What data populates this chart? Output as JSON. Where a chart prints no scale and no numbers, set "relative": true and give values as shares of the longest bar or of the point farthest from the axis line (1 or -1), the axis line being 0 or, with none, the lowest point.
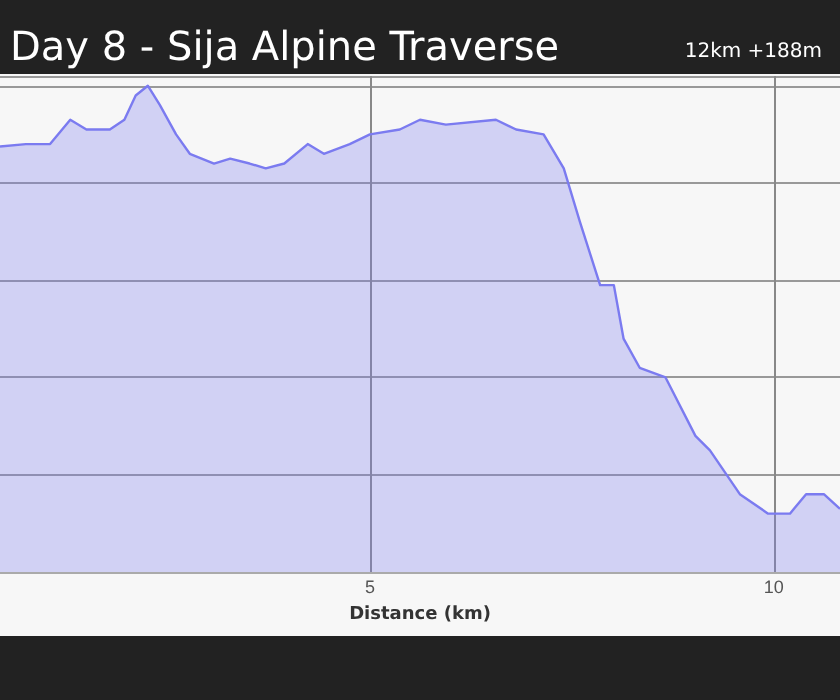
{
  "chart_data": {
    "type": "area",
    "title": "Day 8 - Sija Alpine Traverse",
    "subtitle": "12km +188m",
    "xlabel": "Distance (km)",
    "relative": true,
    "x": [
      0.42,
      0.74,
      1.04,
      1.29,
      1.49,
      1.78,
      1.96,
      2.1,
      2.25,
      2.4,
      2.6,
      2.77,
      3.07,
      3.27,
      3.51,
      3.71,
      3.94,
      4.23,
      4.43,
      4.75,
      5.0,
      5.37,
      5.62,
      5.94,
      6.56,
      6.81,
      7.15,
      7.4,
      7.6,
      7.85,
      8.02,
      8.14,
      8.34,
      8.66,
      9.03,
      9.21,
      9.58,
      9.93,
      10.2,
      10.4,
      10.62,
      10.82
    ],
    "series": [
      {
        "color": "#7b7bf0",
        "values": [
          0.875,
          0.88,
          0.88,
          0.93,
          0.91,
          0.91,
          0.93,
          0.98,
          1.0,
          0.96,
          0.9,
          0.86,
          0.84,
          0.85,
          0.84,
          0.83,
          0.84,
          0.88,
          0.86,
          0.88,
          0.9,
          0.91,
          0.93,
          0.92,
          0.93,
          0.91,
          0.9,
          0.83,
          0.72,
          0.59,
          0.59,
          0.48,
          0.42,
          0.4,
          0.28,
          0.25,
          0.16,
          0.12,
          0.12,
          0.16,
          0.16,
          0.13
        ]
      }
    ],
    "xlim": [
      0.42,
      10.82
    ],
    "xticks": [
      5,
      10
    ],
    "grid": true,
    "marker": "none",
    "line_style": "solid"
  }
}
